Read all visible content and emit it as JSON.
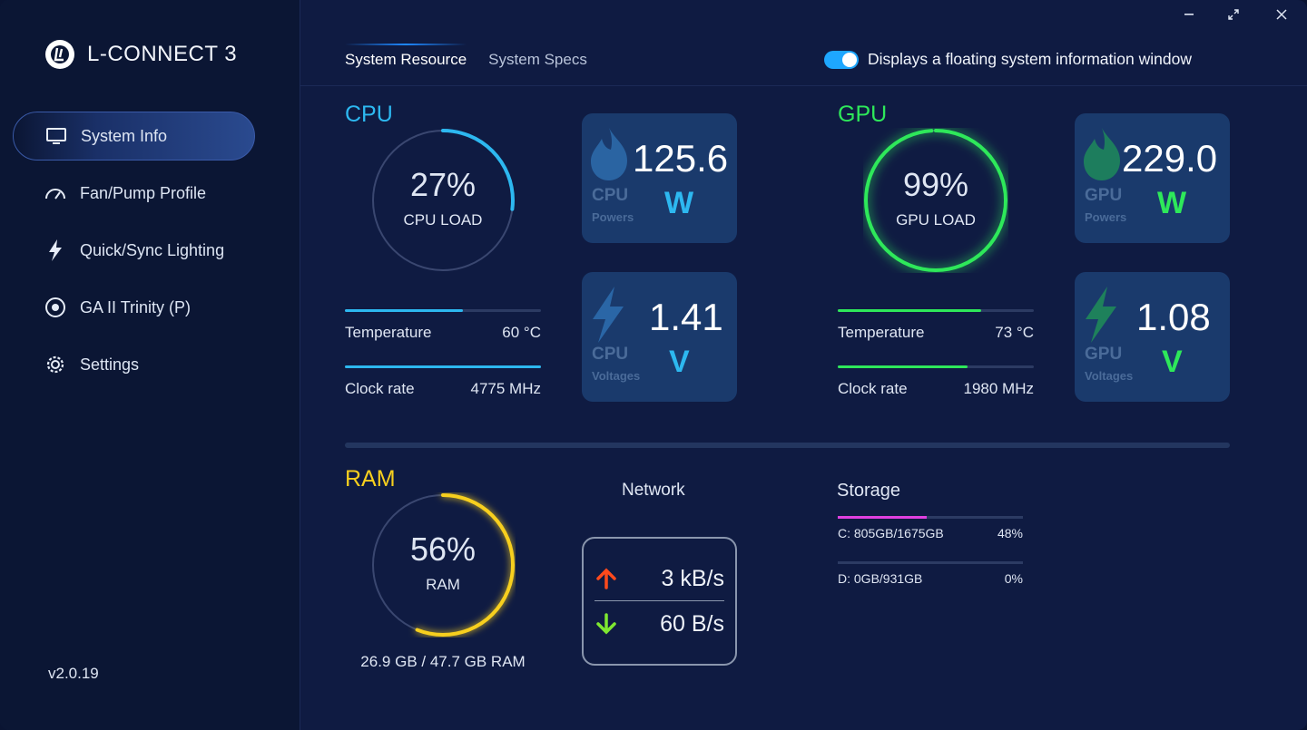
{
  "app": {
    "title": "L-CONNECT 3",
    "version": "v2.0.19"
  },
  "sidebar": {
    "items": [
      {
        "label": "System Info",
        "icon": "monitor-icon"
      },
      {
        "label": "Fan/Pump Profile",
        "icon": "gauge-icon"
      },
      {
        "label": "Quick/Sync Lighting",
        "icon": "lightning-icon"
      },
      {
        "label": "GA II Trinity (P)",
        "icon": "target-icon"
      },
      {
        "label": "Settings",
        "icon": "gear-icon"
      }
    ]
  },
  "tabs": [
    {
      "label": "System Resource"
    },
    {
      "label": "System Specs"
    }
  ],
  "floating_window": {
    "label": "Displays a floating system information window",
    "enabled": true
  },
  "colors": {
    "cpu": "#2db8f0",
    "gpu": "#2ee85a",
    "ram": "#f7cf1e",
    "storage": "#e040e0"
  },
  "cpu": {
    "title": "CPU",
    "load_value": "27%",
    "load_percent": 27,
    "load_label": "CPU LOAD",
    "temperature": {
      "label": "Temperature",
      "value": "60 °C",
      "fill_percent": 60
    },
    "clock": {
      "label": "Clock rate",
      "value": "4775 MHz",
      "fill_percent": 100
    },
    "power": {
      "value": "125.6",
      "unit": "W",
      "kind": "CPU",
      "sub": "Powers"
    },
    "voltage": {
      "value": "1.41",
      "unit": "V",
      "kind": "CPU",
      "sub": "Voltages"
    }
  },
  "gpu": {
    "title": "GPU",
    "load_value": "99%",
    "load_percent": 99,
    "load_label": "GPU LOAD",
    "temperature": {
      "label": "Temperature",
      "value": "73 °C",
      "fill_percent": 73
    },
    "clock": {
      "label": "Clock rate",
      "value": "1980 MHz",
      "fill_percent": 66
    },
    "power": {
      "value": "229.0",
      "unit": "W",
      "kind": "GPU",
      "sub": "Powers"
    },
    "voltage": {
      "value": "1.08",
      "unit": "V",
      "kind": "GPU",
      "sub": "Voltages"
    }
  },
  "ram": {
    "title": "RAM",
    "load_value": "56%",
    "load_percent": 56,
    "load_label": "RAM",
    "detail": "26.9 GB / 47.7 GB RAM"
  },
  "network": {
    "title": "Network",
    "upload": "3 kB/s",
    "download": "60 B/s"
  },
  "storage": {
    "title": "Storage",
    "drives": [
      {
        "label": "C: 805GB/1675GB",
        "percent": "48%",
        "fill_percent": 48
      },
      {
        "label": "D: 0GB/931GB",
        "percent": "0%",
        "fill_percent": 0
      }
    ]
  }
}
